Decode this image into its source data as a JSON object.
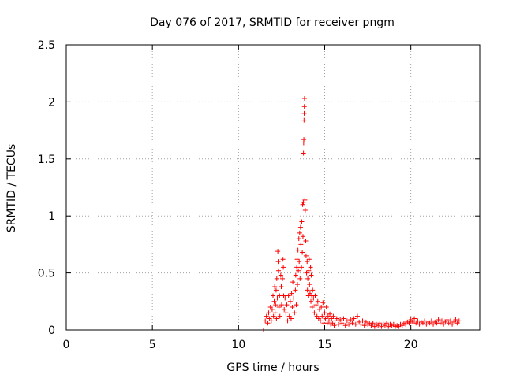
{
  "chart_data": {
    "type": "scatter",
    "title": "Day 076 of 2017, SRMTID for receiver pngm",
    "xlabel": "GPS time / hours",
    "ylabel": "SRMTID / TECUs",
    "xlim": [
      0,
      24
    ],
    "ylim": [
      0,
      2.5
    ],
    "xticks": [
      0,
      5,
      10,
      15,
      20
    ],
    "xtick_labels": [
      "0",
      "5",
      "10",
      "15",
      "20"
    ],
    "yticks": [
      0,
      0.5,
      1,
      1.5,
      2,
      2.5
    ],
    "ytick_labels": [
      "0",
      "0.5",
      "1",
      "1.5",
      "2",
      "2.5"
    ],
    "grid": true,
    "marker": "+",
    "color": "#ff0000",
    "series": [
      {
        "name": "SRMTID",
        "points": [
          [
            11.45,
            0.0
          ],
          [
            11.55,
            0.08
          ],
          [
            11.62,
            0.12
          ],
          [
            11.7,
            0.06
          ],
          [
            11.75,
            0.15
          ],
          [
            11.8,
            0.1
          ],
          [
            11.85,
            0.2
          ],
          [
            11.9,
            0.08
          ],
          [
            11.95,
            0.18
          ],
          [
            12.0,
            0.3
          ],
          [
            12.03,
            0.12
          ],
          [
            12.07,
            0.25
          ],
          [
            12.1,
            0.38
          ],
          [
            12.12,
            0.15
          ],
          [
            12.15,
            0.22
          ],
          [
            12.18,
            0.35
          ],
          [
            12.2,
            0.1
          ],
          [
            12.22,
            0.45
          ],
          [
            12.25,
            0.28
          ],
          [
            12.28,
            0.69
          ],
          [
            12.3,
            0.6
          ],
          [
            12.32,
            0.52
          ],
          [
            12.35,
            0.2
          ],
          [
            12.38,
            0.3
          ],
          [
            12.4,
            0.12
          ],
          [
            12.45,
            0.48
          ],
          [
            12.48,
            0.38
          ],
          [
            12.5,
            0.22
          ],
          [
            12.55,
            0.45
          ],
          [
            12.58,
            0.62
          ],
          [
            12.6,
            0.55
          ],
          [
            12.62,
            0.3
          ],
          [
            12.65,
            0.18
          ],
          [
            12.7,
            0.28
          ],
          [
            12.75,
            0.15
          ],
          [
            12.8,
            0.22
          ],
          [
            12.85,
            0.08
          ],
          [
            12.9,
            0.3
          ],
          [
            12.95,
            0.12
          ],
          [
            13.0,
            0.25
          ],
          [
            13.05,
            0.1
          ],
          [
            13.08,
            0.32
          ],
          [
            13.12,
            0.2
          ],
          [
            13.15,
            0.42
          ],
          [
            13.2,
            0.28
          ],
          [
            13.25,
            0.15
          ],
          [
            13.3,
            0.35
          ],
          [
            13.32,
            0.48
          ],
          [
            13.35,
            0.22
          ],
          [
            13.38,
            0.55
          ],
          [
            13.4,
            0.62
          ],
          [
            13.42,
            0.4
          ],
          [
            13.45,
            0.7
          ],
          [
            13.47,
            0.52
          ],
          [
            13.5,
            0.8
          ],
          [
            13.52,
            0.6
          ],
          [
            13.55,
            0.85
          ],
          [
            13.57,
            0.45
          ],
          [
            13.6,
            0.9
          ],
          [
            13.62,
            0.75
          ],
          [
            13.65,
            0.55
          ],
          [
            13.67,
            0.95
          ],
          [
            13.7,
            0.68
          ],
          [
            13.72,
            1.1
          ],
          [
            13.74,
            0.82
          ],
          [
            13.76,
            1.12
          ],
          [
            13.77,
            1.55
          ],
          [
            13.78,
            1.64
          ],
          [
            13.79,
            1.67
          ],
          [
            13.8,
            1.84
          ],
          [
            13.81,
            1.9
          ],
          [
            13.82,
            1.96
          ],
          [
            13.83,
            2.03
          ],
          [
            13.85,
            1.14
          ],
          [
            13.87,
            1.05
          ],
          [
            13.9,
            0.78
          ],
          [
            13.92,
            0.65
          ],
          [
            13.95,
            0.5
          ],
          [
            13.98,
            0.6
          ],
          [
            14.0,
            0.35
          ],
          [
            14.02,
            0.45
          ],
          [
            14.05,
            0.3
          ],
          [
            14.08,
            0.52
          ],
          [
            14.1,
            0.62
          ],
          [
            14.12,
            0.4
          ],
          [
            14.15,
            0.32
          ],
          [
            14.18,
            0.55
          ],
          [
            14.2,
            0.25
          ],
          [
            14.22,
            0.48
          ],
          [
            14.25,
            0.3
          ],
          [
            14.28,
            0.2
          ],
          [
            14.3,
            0.35
          ],
          [
            14.35,
            0.28
          ],
          [
            14.4,
            0.15
          ],
          [
            14.45,
            0.3
          ],
          [
            14.5,
            0.22
          ],
          [
            14.55,
            0.12
          ],
          [
            14.6,
            0.25
          ],
          [
            14.65,
            0.1
          ],
          [
            14.7,
            0.18
          ],
          [
            14.75,
            0.08
          ],
          [
            14.8,
            0.2
          ],
          [
            14.85,
            0.12
          ],
          [
            14.9,
            0.24
          ],
          [
            14.95,
            0.06
          ],
          [
            15.0,
            0.15
          ],
          [
            15.05,
            0.1
          ],
          [
            15.1,
            0.2
          ],
          [
            15.15,
            0.06
          ],
          [
            15.2,
            0.12
          ],
          [
            15.25,
            0.08
          ],
          [
            15.3,
            0.14
          ],
          [
            15.35,
            0.05
          ],
          [
            15.4,
            0.1
          ],
          [
            15.45,
            0.06
          ],
          [
            15.5,
            0.12
          ],
          [
            15.55,
            0.04
          ],
          [
            15.6,
            0.08
          ],
          [
            15.7,
            0.1
          ],
          [
            15.8,
            0.05
          ],
          [
            15.9,
            0.09
          ],
          [
            16.0,
            0.06
          ],
          [
            16.1,
            0.1
          ],
          [
            16.2,
            0.04
          ],
          [
            16.3,
            0.08
          ],
          [
            16.4,
            0.05
          ],
          [
            16.5,
            0.09
          ],
          [
            16.6,
            0.06
          ],
          [
            16.7,
            0.1
          ],
          [
            16.8,
            0.05
          ],
          [
            16.9,
            0.12
          ],
          [
            17.0,
            0.07
          ],
          [
            17.1,
            0.05
          ],
          [
            17.2,
            0.08
          ],
          [
            17.3,
            0.04
          ],
          [
            17.4,
            0.07
          ],
          [
            17.5,
            0.05
          ],
          [
            17.6,
            0.06
          ],
          [
            17.7,
            0.04
          ],
          [
            17.8,
            0.06
          ],
          [
            17.9,
            0.03
          ],
          [
            18.0,
            0.05
          ],
          [
            18.1,
            0.04
          ],
          [
            18.2,
            0.06
          ],
          [
            18.3,
            0.03
          ],
          [
            18.4,
            0.05
          ],
          [
            18.5,
            0.04
          ],
          [
            18.6,
            0.06
          ],
          [
            18.7,
            0.03
          ],
          [
            18.8,
            0.05
          ],
          [
            18.9,
            0.04
          ],
          [
            19.0,
            0.05
          ],
          [
            19.1,
            0.03
          ],
          [
            19.2,
            0.04
          ],
          [
            19.3,
            0.03
          ],
          [
            19.4,
            0.05
          ],
          [
            19.5,
            0.04
          ],
          [
            19.6,
            0.06
          ],
          [
            19.7,
            0.05
          ],
          [
            19.8,
            0.07
          ],
          [
            19.9,
            0.06
          ],
          [
            20.0,
            0.09
          ],
          [
            20.1,
            0.07
          ],
          [
            20.2,
            0.1
          ],
          [
            20.3,
            0.06
          ],
          [
            20.4,
            0.08
          ],
          [
            20.5,
            0.05
          ],
          [
            20.6,
            0.07
          ],
          [
            20.7,
            0.06
          ],
          [
            20.8,
            0.08
          ],
          [
            20.9,
            0.05
          ],
          [
            21.0,
            0.07
          ],
          [
            21.1,
            0.06
          ],
          [
            21.2,
            0.08
          ],
          [
            21.3,
            0.05
          ],
          [
            21.4,
            0.07
          ],
          [
            21.5,
            0.06
          ],
          [
            21.6,
            0.09
          ],
          [
            21.7,
            0.06
          ],
          [
            21.8,
            0.08
          ],
          [
            21.9,
            0.05
          ],
          [
            22.0,
            0.07
          ],
          [
            22.1,
            0.09
          ],
          [
            22.2,
            0.06
          ],
          [
            22.3,
            0.08
          ],
          [
            22.4,
            0.05
          ],
          [
            22.5,
            0.07
          ],
          [
            22.6,
            0.09
          ],
          [
            22.7,
            0.06
          ],
          [
            22.8,
            0.08
          ]
        ]
      }
    ]
  }
}
